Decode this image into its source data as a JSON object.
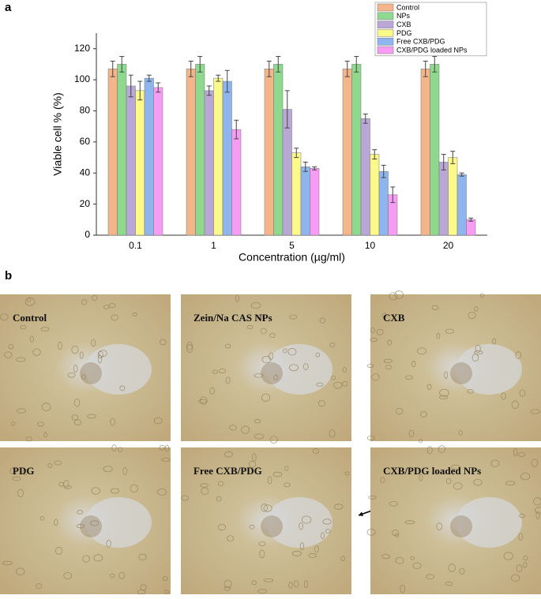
{
  "chart_data": {
    "type": "bar",
    "y_label": "Viable cell % (%)",
    "x_label": "Concentration (µg/ml)",
    "categories": [
      "0.1",
      "1",
      "5",
      "10",
      "20"
    ],
    "series": [
      {
        "name": "Control",
        "color": "#f5b58a",
        "values": [
          107,
          107,
          107,
          107,
          107
        ],
        "errors": [
          5,
          5,
          5,
          5,
          5
        ]
      },
      {
        "name": "NPs",
        "color": "#8fd98f",
        "values": [
          110,
          110,
          110,
          110,
          110
        ],
        "errors": [
          5,
          5,
          5,
          5,
          5
        ]
      },
      {
        "name": "CXB",
        "color": "#b9a8d6",
        "values": [
          96,
          93,
          81,
          75,
          47
        ],
        "errors": [
          7,
          3,
          12,
          3,
          5
        ]
      },
      {
        "name": "PDG",
        "color": "#fbf98a",
        "values": [
          93,
          101,
          53,
          52,
          50
        ],
        "errors": [
          6,
          2,
          3,
          3,
          4
        ]
      },
      {
        "name": "Free CXB/PDG",
        "color": "#8fb5ee",
        "values": [
          101,
          99,
          44,
          41,
          39
        ],
        "errors": [
          2,
          7,
          3,
          4,
          1
        ]
      },
      {
        "name": "CXB/PDG loaded NPs",
        "color": "#f79cf3",
        "values": [
          95,
          68,
          43,
          26,
          10
        ],
        "errors": [
          3,
          6,
          1,
          5,
          1
        ]
      }
    ],
    "ylim": [
      0,
      130
    ],
    "yticks": [
      0,
      20,
      40,
      60,
      80,
      100,
      120
    ],
    "grid": false,
    "legend": "top-right"
  },
  "figure": {
    "panel_a": "a",
    "panel_b": "b"
  },
  "micrographs": {
    "labels": [
      "Control",
      "Zein/Na CAS NPs",
      "CXB",
      "PDG",
      "Free CXB/PDG",
      "CXB/PDG loaded NPs"
    ]
  }
}
